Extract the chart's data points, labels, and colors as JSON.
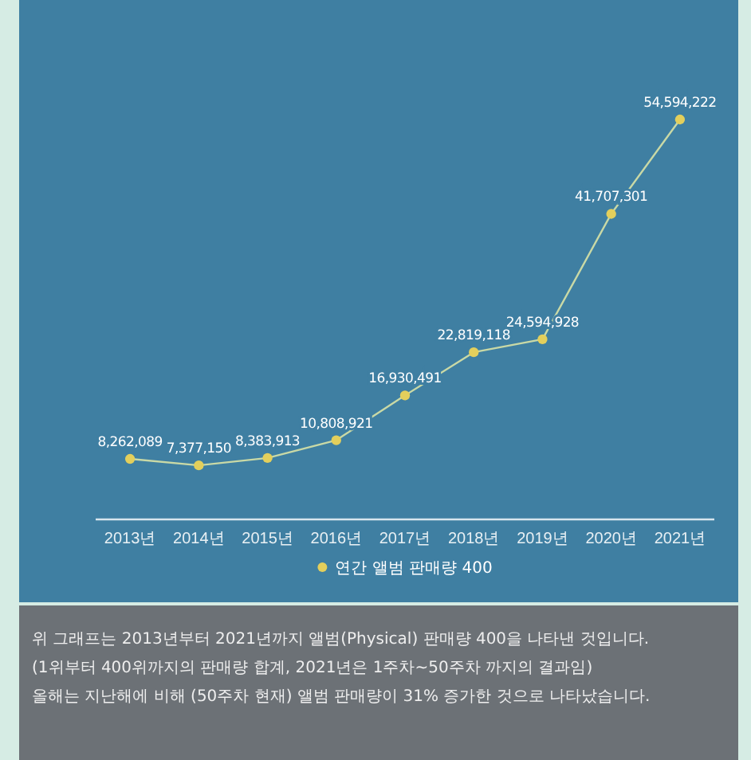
{
  "chart_data": {
    "type": "line",
    "categories": [
      "2013년",
      "2014년",
      "2015년",
      "2016년",
      "2017년",
      "2018년",
      "2019년",
      "2020년",
      "2021년"
    ],
    "series": [
      {
        "name": "연간 앨범 판매량 400",
        "color": "#e3cf5c",
        "values": [
          8262089,
          7377150,
          8383913,
          10808921,
          16930491,
          22819118,
          24594928,
          41707301,
          54594222
        ],
        "value_labels": [
          "8,262,089",
          "7,377,150",
          "8,383,913",
          "10,808,921",
          "16,930,491",
          "22,819,118",
          "24,594,928",
          "41,707,301",
          "54,594,222"
        ]
      }
    ],
    "marker": "circle",
    "legend": "bottom",
    "grid": false,
    "annotations": [
      "위 그래프는 2013년부터 2021년까지 앨범(Physical) 판매량 400을 나타낸 것입니다.",
      "(1위부터 400위까지의 판매량 합계, 2021년은 1주차~50주차 까지의 결과임)",
      "올해는 지난해에 비해 (50주차 현재) 앨범 판매량이  31% 증가한 것으로 나타났습니다."
    ]
  }
}
